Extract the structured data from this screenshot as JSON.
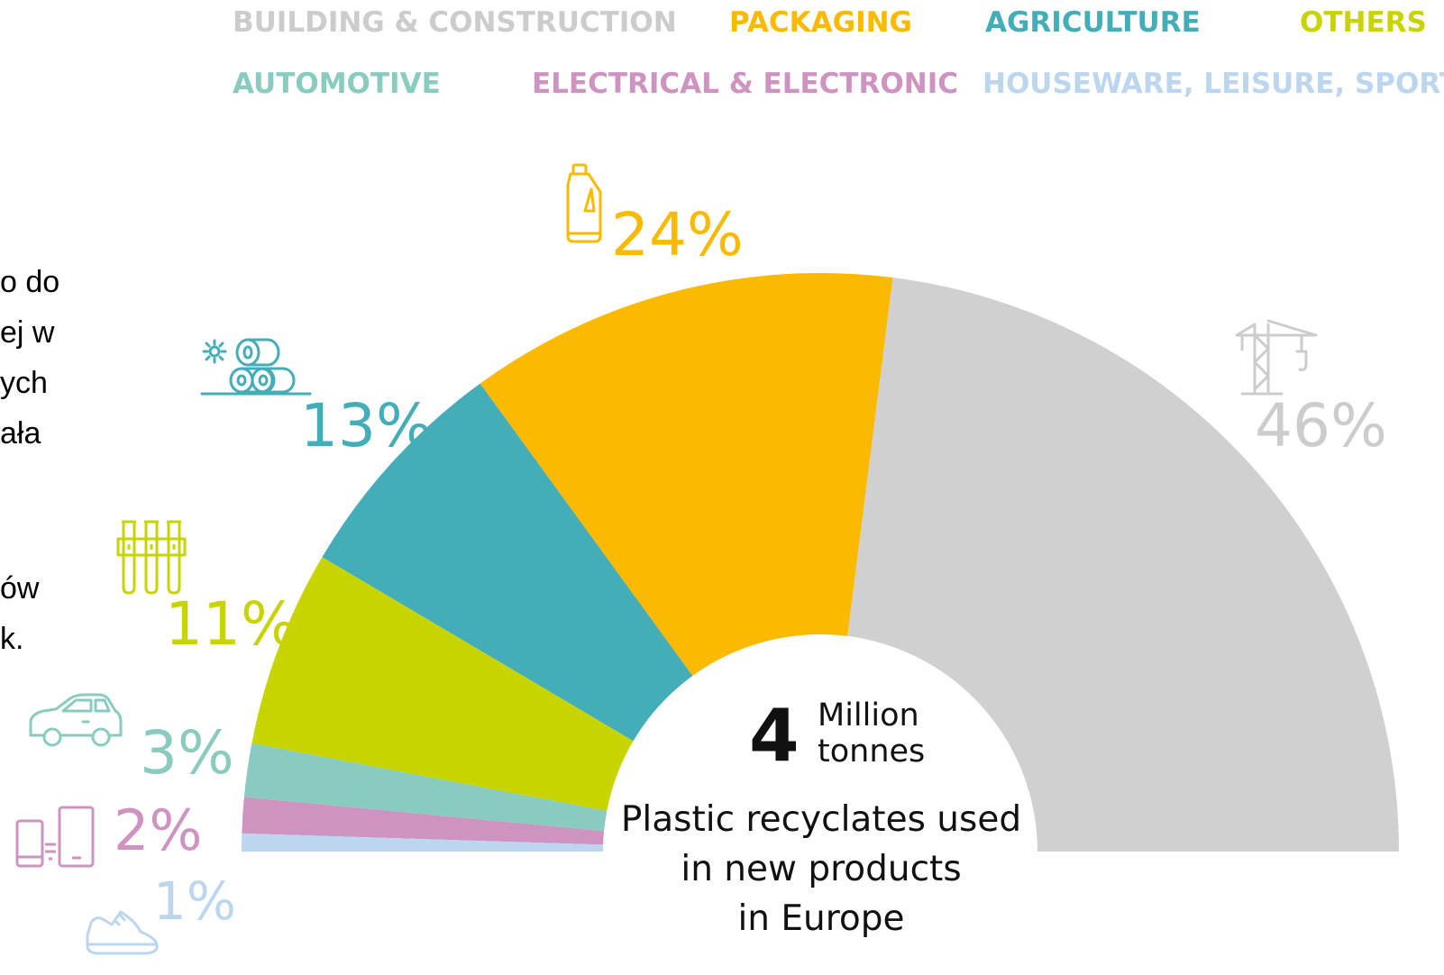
{
  "legend": [
    {
      "label": "BUILDING & CONSTRUCTION",
      "color": "#cccccc"
    },
    {
      "label": "PACKAGING",
      "color": "#fbb900"
    },
    {
      "label": "AGRICULTURE",
      "color": "#43adb8"
    },
    {
      "label": "OTHERS",
      "color": "#c8d400"
    },
    {
      "label": "AUTOMOTIVE",
      "color": "#89cbbf"
    },
    {
      "label": "ELECTRICAL & ELECTRONIC",
      "color": "#cf93c2"
    },
    {
      "label": "HOUSEWARE, LEISURE, SPORTS",
      "color": "#bcd6ef"
    }
  ],
  "side_text": [
    "o do",
    "ej w",
    "ych",
    "ała",
    "ów",
    "k."
  ],
  "center": {
    "value": "4",
    "unit_line1": "Million",
    "unit_line2": "tonnes",
    "caption_line1": "Plastic recyclates used",
    "caption_line2": "in new products",
    "caption_line3": "in Europe"
  },
  "chart_data": {
    "type": "pie",
    "variant": "half-donut",
    "categories": [
      "BUILDING & CONSTRUCTION",
      "PACKAGING",
      "AGRICULTURE",
      "OTHERS",
      "AUTOMOTIVE",
      "ELECTRICAL & ELECTRONIC",
      "HOUSEWARE, LEISURE, SPORTS"
    ],
    "values": [
      46,
      24,
      13,
      11,
      3,
      2,
      1
    ],
    "labels": [
      "46%",
      "24%",
      "13%",
      "11%",
      "3%",
      "2%",
      "1%"
    ],
    "colors": [
      "#d0d0d0",
      "#fbb900",
      "#43adb8",
      "#c8d400",
      "#89cbbf",
      "#cf93c2",
      "#bcd6ef"
    ],
    "label_colors": [
      "#cccccc",
      "#fbb900",
      "#43adb8",
      "#c8d400",
      "#89cbbf",
      "#cf93c2",
      "#bcd6ef"
    ],
    "icons": [
      "crane-icon",
      "bottle-icon",
      "hay-bales-icon",
      "test-tubes-icon",
      "car-icon",
      "devices-icon",
      "sneaker-icon"
    ],
    "legend_placement": "top"
  }
}
